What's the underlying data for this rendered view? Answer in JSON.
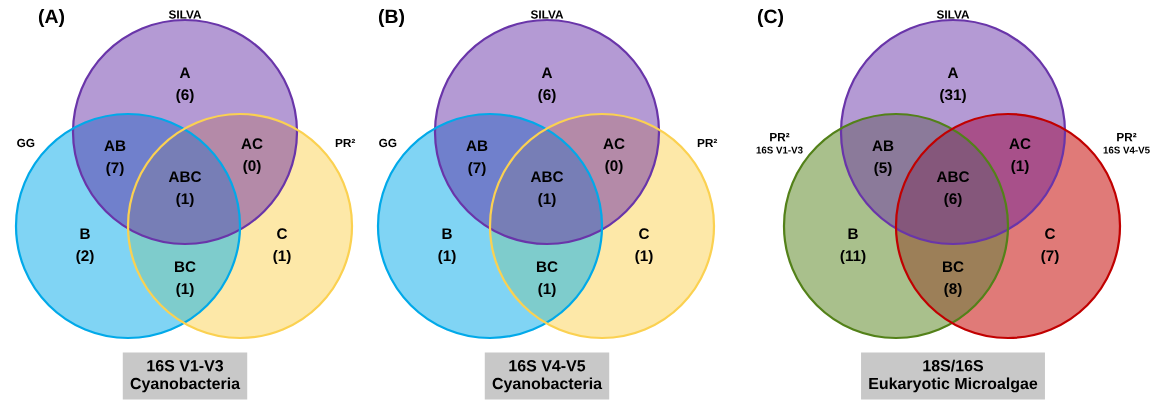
{
  "chart_data": [
    {
      "type": "other",
      "title": "(A)",
      "annotations": [
        "SILVA",
        "GG",
        "PR²"
      ],
      "categories": [
        "A",
        "AB",
        "AC",
        "ABC",
        "B",
        "BC",
        "C"
      ],
      "values": [
        6,
        7,
        0,
        1,
        2,
        1,
        1
      ],
      "value_labels": [
        "(6)",
        "(7)",
        "(0)",
        "(1)",
        "(2)",
        "(1)",
        "(1)"
      ],
      "colors": [
        "#b49ad4",
        "#7080cc",
        "#b48aa8",
        "#777eb6",
        "#80d4f4",
        "#7ecccc",
        "#fde8a8"
      ],
      "xlabel": "16S V1-V3\nCyanobacteria"
    },
    {
      "type": "other",
      "title": "(B)",
      "annotations": [
        "SILVA",
        "GG",
        "PR²"
      ],
      "categories": [
        "A",
        "AB",
        "AC",
        "ABC",
        "B",
        "BC",
        "C"
      ],
      "values": [
        6,
        7,
        0,
        1,
        1,
        1,
        1
      ],
      "value_labels": [
        "(6)",
        "(7)",
        "(0)",
        "(1)",
        "(1)",
        "(1)",
        "(1)"
      ],
      "colors": [
        "#b49ad4",
        "#7080cc",
        "#b48aa8",
        "#777eb6",
        "#80d4f4",
        "#7ecccc",
        "#fde8a8"
      ],
      "xlabel": "16S V4-V5\nCyanobacteria"
    },
    {
      "type": "other",
      "title": "(C)",
      "annotations": [
        "SILVA",
        "PR²\n16S V1-V3",
        "PR²\n16S V4-V5"
      ],
      "categories": [
        "A",
        "AB",
        "AC",
        "ABC",
        "B",
        "BC",
        "C"
      ],
      "values": [
        31,
        5,
        1,
        6,
        11,
        8,
        7
      ],
      "value_labels": [
        "(31)",
        "(5)",
        "(1)",
        "(6)",
        "(11)",
        "(8)",
        "(7)"
      ],
      "colors": [
        "#b49ad4",
        "#8b7a9a",
        "#a8508a",
        "#85577b",
        "#a9c08c",
        "#9c7f58",
        "#e07a78"
      ],
      "xlabel": "18S/16S\nEukaryotic Microalgae"
    }
  ]
}
